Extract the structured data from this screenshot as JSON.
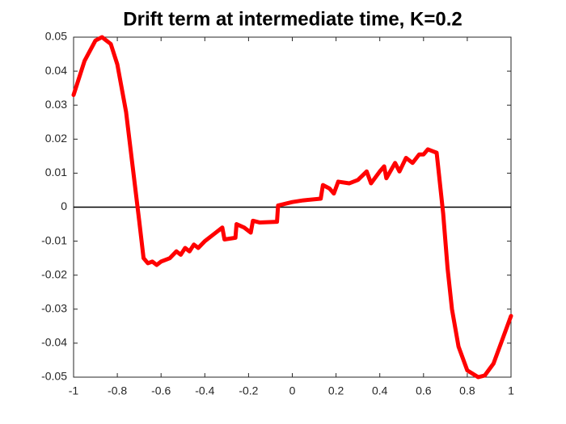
{
  "chart_data": {
    "type": "line",
    "title": "Drift term at intermediate time, K=0.2",
    "x": [
      -1,
      -0.95,
      -0.9,
      -0.87,
      -0.83,
      -0.8,
      -0.76,
      -0.73,
      -0.7,
      -0.68,
      -0.66,
      -0.64,
      -0.62,
      -0.6,
      -0.56,
      -0.53,
      -0.51,
      -0.49,
      -0.47,
      -0.45,
      -0.43,
      -0.4,
      -0.36,
      -0.32,
      -0.31,
      -0.26,
      -0.255,
      -0.22,
      -0.19,
      -0.18,
      -0.15,
      -0.07,
      -0.065,
      0,
      0.05,
      0.13,
      0.14,
      0.17,
      0.19,
      0.21,
      0.26,
      0.3,
      0.34,
      0.36,
      0.4,
      0.42,
      0.43,
      0.47,
      0.49,
      0.52,
      0.55,
      0.58,
      0.6,
      0.62,
      0.64,
      0.66,
      0.67,
      0.69,
      0.71,
      0.73,
      0.76,
      0.8,
      0.85,
      0.88,
      0.92,
      0.96,
      1
    ],
    "series": [
      {
        "color": "#ff0000",
        "values": [
          0.033,
          0.043,
          0.049,
          0.05,
          0.048,
          0.042,
          0.028,
          0.012,
          -0.004,
          -0.015,
          -0.0165,
          -0.016,
          -0.017,
          -0.016,
          -0.015,
          -0.013,
          -0.014,
          -0.012,
          -0.013,
          -0.011,
          -0.012,
          -0.01,
          -0.008,
          -0.006,
          -0.0095,
          -0.009,
          -0.005,
          -0.006,
          -0.0075,
          -0.004,
          -0.0045,
          -0.0043,
          0.0005,
          0.0015,
          0.002,
          0.0025,
          0.0065,
          0.0055,
          0.004,
          0.0075,
          0.007,
          0.008,
          0.0105,
          0.007,
          0.0105,
          0.012,
          0.0085,
          0.013,
          0.0105,
          0.0145,
          0.013,
          0.0155,
          0.0155,
          0.017,
          0.0165,
          0.016,
          0.01,
          -0.002,
          -0.018,
          -0.03,
          -0.041,
          -0.048,
          -0.05,
          -0.0495,
          -0.046,
          -0.039,
          -0.032
        ]
      }
    ],
    "xlim": [
      -1,
      1
    ],
    "xticks": [
      -1,
      -0.8,
      -0.6,
      -0.4,
      -0.2,
      0,
      0.2,
      0.4,
      0.6,
      0.8,
      1
    ],
    "ylim": [
      -0.05,
      0.05
    ],
    "yticks": [
      -0.05,
      -0.04,
      -0.03,
      -0.02,
      -0.01,
      0,
      0.01,
      0.02,
      0.03,
      0.04,
      0.05
    ],
    "reference_line_y": 0
  }
}
